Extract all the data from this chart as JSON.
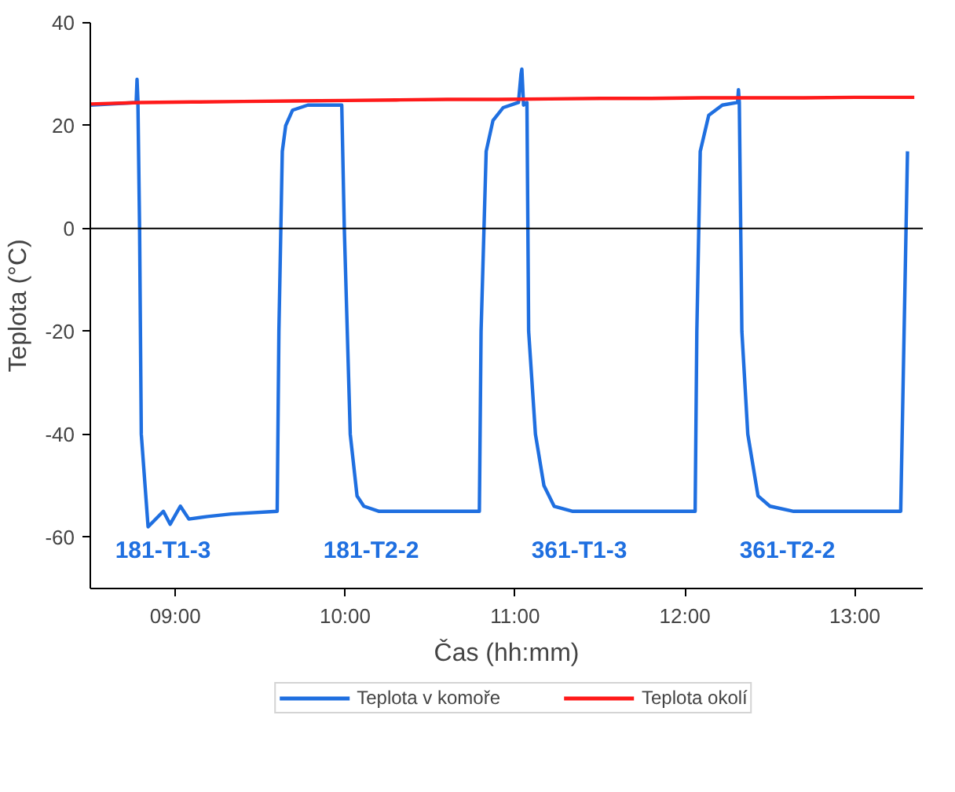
{
  "chart_data": {
    "type": "line",
    "xlabel": "Čas (hh:mm)",
    "ylabel": "Teplota (°C)",
    "xlim": [
      8.5,
      13.4
    ],
    "ylim": [
      -70,
      40
    ],
    "xticks": [
      {
        "value": 9,
        "label": "09:00"
      },
      {
        "value": 10,
        "label": "10:00"
      },
      {
        "value": 11,
        "label": "11:00"
      },
      {
        "value": 12,
        "label": "12:00"
      },
      {
        "value": 13,
        "label": "13:00"
      }
    ],
    "yticks": [
      -60,
      -40,
      -20,
      0,
      20,
      40
    ],
    "grid": false,
    "legend": "bottom",
    "line_style": "solid",
    "marker": "none",
    "ref_lines": [
      {
        "axis": "y",
        "value": 0,
        "label": null,
        "color": "#000000"
      }
    ],
    "annotations": [
      "181-T1-3",
      "181-T2-2",
      "361-T1-3",
      "361-T2-2"
    ],
    "series": [
      {
        "name": "Teplota v komoře",
        "color": "#1f6fe0",
        "x": [
          8.5,
          8.77,
          8.775,
          8.78,
          8.79,
          8.8,
          8.84,
          8.93,
          8.97,
          9.03,
          9.08,
          9.19,
          9.33,
          9.6,
          9.61,
          9.63,
          9.65,
          9.69,
          9.78,
          9.98,
          9.995,
          10.03,
          10.07,
          10.11,
          10.2,
          10.79,
          10.8,
          10.83,
          10.87,
          10.93,
          11.02,
          11.035,
          11.04,
          11.05,
          11.07,
          11.08,
          11.12,
          11.17,
          11.23,
          11.34,
          12.06,
          12.07,
          12.09,
          12.14,
          12.22,
          12.31,
          12.315,
          12.32,
          12.335,
          12.37,
          12.43,
          12.5,
          12.64,
          13.27,
          13.29,
          13.31
        ],
        "values": [
          24,
          24.5,
          29,
          25,
          0,
          -40,
          -58,
          -55,
          -57.5,
          -54,
          -56.5,
          -56,
          -55.5,
          -55,
          -20,
          15,
          20,
          23,
          24,
          24,
          0,
          -40,
          -52,
          -54,
          -55,
          -55,
          -20,
          15,
          21,
          23.5,
          24.5,
          30,
          31,
          24,
          24.5,
          -20,
          -40,
          -50,
          -54,
          -55,
          -55,
          -20,
          15,
          22,
          24,
          24.5,
          27,
          24.5,
          -20,
          -40,
          -52,
          -54,
          -55,
          -55,
          -20,
          15
        ]
      },
      {
        "name": "Teplota okolí",
        "color": "#ff1a1a",
        "x": [
          8.5,
          8.8,
          9.1,
          9.4,
          9.7,
          10.0,
          10.3,
          10.6,
          10.9,
          11.2,
          11.5,
          11.8,
          12.1,
          12.4,
          12.7,
          13.0,
          13.35
        ],
        "values": [
          24.2,
          24.5,
          24.6,
          24.7,
          24.8,
          24.9,
          25.0,
          25.1,
          25.1,
          25.2,
          25.3,
          25.3,
          25.4,
          25.4,
          25.4,
          25.5,
          25.5
        ]
      }
    ]
  }
}
